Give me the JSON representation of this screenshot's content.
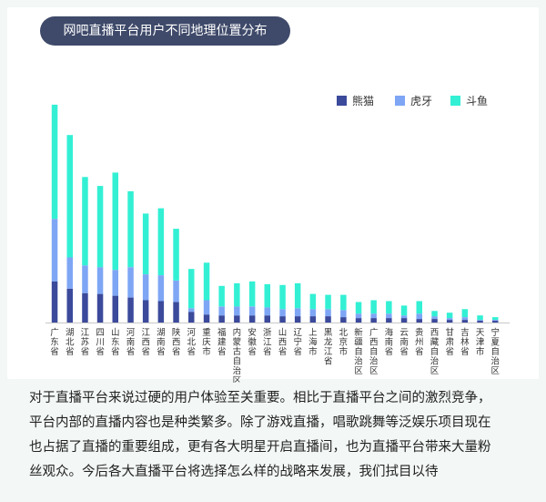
{
  "chart_data": {
    "type": "bar",
    "stacked": true,
    "title": "网吧直播平台用户不同地理位置分布",
    "legend_position": "top-right",
    "categories": [
      "广东省",
      "湖北省",
      "江苏省",
      "四川省",
      "山东省",
      "河南省",
      "江西省",
      "湖南省",
      "陕西省",
      "河北省",
      "重庆市",
      "福建省",
      "内蒙古自治区",
      "安徽省",
      "浙江省",
      "山西省",
      "辽宁省",
      "上海市",
      "黑龙江省",
      "北京市",
      "新疆自治区",
      "广西自治区",
      "海南省",
      "云南省",
      "贵州省",
      "西藏自治区",
      "甘肃省",
      "吉林省",
      "天津市",
      "宁夏自治区"
    ],
    "series": [
      {
        "name": "熊猫",
        "color": "#3b4a9b",
        "values": [
          46,
          38,
          33,
          32,
          30,
          28,
          25,
          24,
          23,
          12,
          9,
          8,
          8,
          8,
          8,
          7,
          7,
          7,
          7,
          6,
          5,
          5,
          5,
          5,
          4,
          4,
          3,
          3,
          2,
          2
        ]
      },
      {
        "name": "虎牙",
        "color": "#7ea6f5",
        "values": [
          70,
          35,
          31,
          30,
          29,
          34,
          29,
          29,
          24,
          4,
          16,
          10,
          10,
          10,
          9,
          8,
          9,
          8,
          8,
          8,
          5,
          5,
          5,
          3,
          6,
          3,
          2,
          3,
          1,
          1
        ]
      },
      {
        "name": "斗鱼",
        "color": "#33f0d4",
        "values": [
          128,
          137,
          99,
          91,
          109,
          85,
          68,
          75,
          58,
          44,
          42,
          23,
          26,
          28,
          26,
          27,
          28,
          17,
          16,
          17,
          13,
          15,
          14,
          11,
          14,
          6,
          6,
          9,
          5,
          3
        ]
      }
    ]
  },
  "paragraph": [
    "对于直播平台来说过硬的用户体验至关重要。相比于直播平台之间的激烈竞争，",
    "平台内部的直播内容也是种类繁多。除了游戏直播，唱歌跳舞等泛娱乐项目现在",
    "也占据了直播的重要组成，更有各大明星开启直播间，也为直播平台带来大量粉",
    "丝观众。今后各大直播平台将选择怎么样的战略来发展，我们拭目以待"
  ]
}
